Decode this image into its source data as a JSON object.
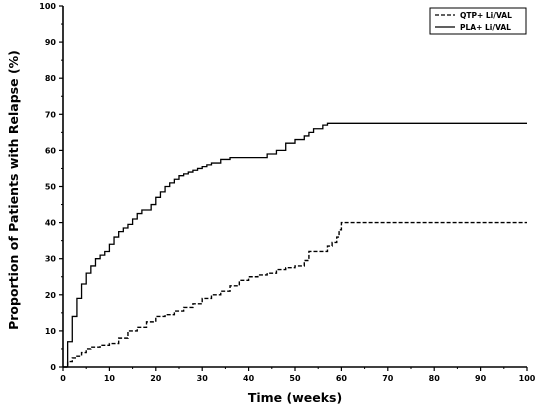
{
  "chart_data": {
    "type": "line",
    "title": "",
    "xlabel": "Time (weeks)",
    "ylabel": "Proportion of Patients with Relapse (%)",
    "xlim": [
      0,
      100
    ],
    "ylim": [
      0,
      100
    ],
    "x_ticks": [
      0,
      10,
      20,
      30,
      40,
      50,
      60,
      70,
      80,
      90,
      100
    ],
    "y_ticks": [
      0,
      10,
      20,
      30,
      40,
      50,
      60,
      70,
      80,
      90,
      100
    ],
    "grid": false,
    "legend_position": "top-right",
    "series": [
      {
        "name": "QTP+ Li/VAL",
        "line_style": "dashed",
        "color": "#000000",
        "x": [
          0,
          1,
          2,
          3,
          4,
          5,
          6,
          8,
          10,
          12,
          14,
          16,
          18,
          20,
          22,
          24,
          26,
          28,
          30,
          32,
          34,
          36,
          38,
          40,
          42,
          44,
          46,
          48,
          50,
          52,
          53,
          56,
          57,
          58,
          59,
          59.5,
          60,
          100
        ],
        "y": [
          0,
          1.5,
          2.5,
          3,
          4,
          5,
          5.5,
          6,
          6.5,
          8,
          10,
          11,
          12.5,
          14,
          14.5,
          15.5,
          16.5,
          17.5,
          19,
          20,
          21,
          22.5,
          24,
          25,
          25.5,
          26,
          27,
          27.5,
          28,
          29.5,
          32,
          32,
          33.5,
          34.5,
          36,
          38,
          40,
          40
        ]
      },
      {
        "name": "PLA+ Li/VAL",
        "line_style": "solid",
        "color": "#000000",
        "x": [
          0,
          1,
          2,
          3,
          4,
          5,
          6,
          7,
          8,
          9,
          10,
          11,
          12,
          13,
          14,
          15,
          16,
          17,
          18,
          19,
          20,
          21,
          22,
          23,
          24,
          25,
          26,
          27,
          28,
          29,
          30,
          31,
          32,
          34,
          36,
          38,
          40,
          42,
          44,
          46,
          48,
          50,
          52,
          53,
          54,
          55,
          56,
          57,
          58,
          100
        ],
        "y": [
          0,
          7,
          14,
          19,
          23,
          26,
          28,
          30,
          31,
          32,
          34,
          36,
          37.5,
          38.5,
          39.5,
          41,
          42.5,
          43.5,
          43.5,
          45,
          47,
          48.5,
          50,
          51,
          52,
          53,
          53.5,
          54,
          54.5,
          55,
          55.5,
          56,
          56.5,
          57.5,
          58,
          58,
          58,
          58,
          59,
          60,
          62,
          63,
          64,
          65,
          66,
          66,
          67,
          67.5,
          67.5,
          67.5
        ]
      }
    ]
  }
}
